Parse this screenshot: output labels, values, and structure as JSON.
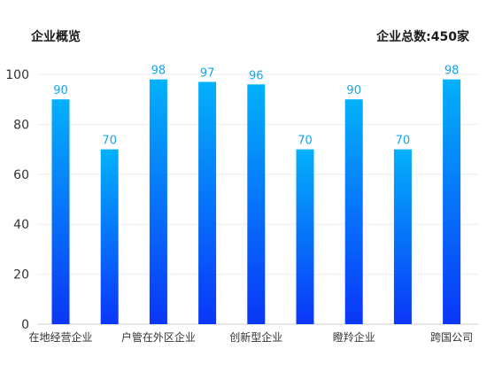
{
  "header": {
    "title": "企业概览",
    "total_label": "企业总数:",
    "total_value": "450家"
  },
  "colors": {
    "bar_top": "#03b1fb",
    "bar_bottom": "#0a36f8",
    "data_label": "#14a5ee",
    "grid": "#eeeeee",
    "axis": "#cccccc"
  },
  "chart_data": {
    "type": "bar",
    "title": "企业概览",
    "xlabel": "",
    "ylabel": "",
    "ylim": [
      0,
      100
    ],
    "yticks": [
      0,
      20,
      40,
      60,
      80,
      100
    ],
    "grid": true,
    "categories": [
      "在地经营企业",
      "",
      "户管在外区企业",
      "",
      "创新型企业",
      "",
      "瞪羚企业",
      "",
      "跨国公司"
    ],
    "bar_values": [
      90,
      70,
      98,
      97,
      96,
      70,
      90,
      70,
      98
    ]
  }
}
